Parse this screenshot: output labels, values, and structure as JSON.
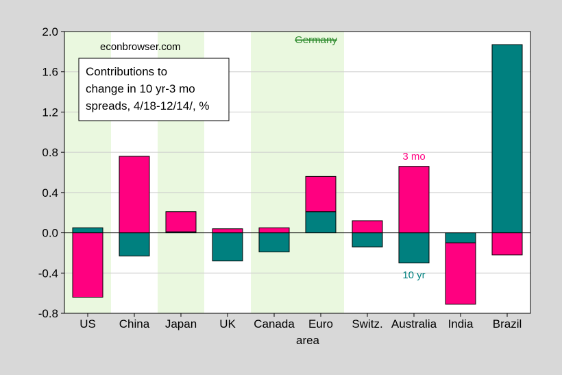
{
  "chart_data": {
    "type": "bar",
    "stacked": true,
    "title_box": [
      "Contributions to",
      "change in 10 yr-3 mo",
      "spreads, 4/18-12/14/, %"
    ],
    "watermark": "econbrowser.com",
    "xlabel": "area",
    "ylabel": "",
    "ylim": [
      -0.8,
      2.0
    ],
    "yticks": [
      "2.0",
      "1.6",
      "1.2",
      "0.8",
      "0.4",
      "0.0",
      "-0.4",
      "-0.8"
    ],
    "yticks_values": [
      2.0,
      1.6,
      1.2,
      0.8,
      0.4,
      0.0,
      -0.4,
      -0.8
    ],
    "grid": true,
    "categories": [
      "US",
      "China",
      "Japan",
      "UK",
      "Canada",
      "Euro",
      "Switz.",
      "Australia",
      "India",
      "Brazil"
    ],
    "shaded_categories": [
      "US",
      "Japan",
      "Canada",
      "Euro"
    ],
    "euro_annotation": "Germany",
    "series": [
      {
        "name": "10 yr",
        "color": "#00807f",
        "values": [
          0.05,
          -0.23,
          0.01,
          -0.28,
          -0.19,
          0.21,
          -0.14,
          -0.3,
          -0.1,
          1.87
        ]
      },
      {
        "name": "3 mo",
        "color": "#ff0080",
        "values": [
          -0.64,
          0.76,
          0.2,
          0.04,
          0.05,
          0.35,
          0.12,
          0.66,
          -0.61,
          -0.22
        ]
      }
    ],
    "series_labels": {
      "3 mo": {
        "text": "3 mo",
        "category": "Australia",
        "at": 0.76
      },
      "10 yr": {
        "text": "10 yr",
        "category": "Australia",
        "at": -0.42
      }
    },
    "colors": {
      "shade": "#eaf8df",
      "plot_bg": "#ffffff",
      "page_bg": "#d8d8d8",
      "grid": "#cccccc",
      "germany": "#2e8b2e"
    }
  }
}
